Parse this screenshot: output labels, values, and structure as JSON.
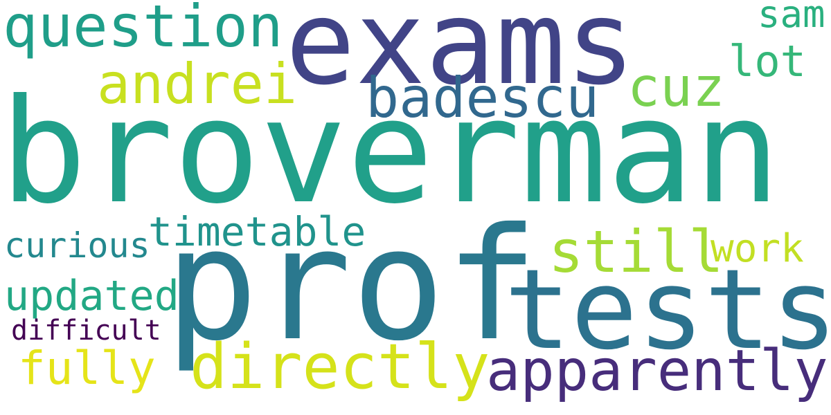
{
  "words": [
    {
      "text": "broverman",
      "color": "#21a08a"
    },
    {
      "text": "exams",
      "color": "#414487"
    },
    {
      "text": "prof",
      "color": "#2a788e"
    },
    {
      "text": "tests",
      "color": "#2c728e"
    },
    {
      "text": "question",
      "color": "#1f9e89"
    },
    {
      "text": "badescu",
      "color": "#31688e"
    },
    {
      "text": "andrei",
      "color": "#c8e020"
    },
    {
      "text": "cuz",
      "color": "#7ad151"
    },
    {
      "text": "sam",
      "color": "#2ab07f"
    },
    {
      "text": "lot",
      "color": "#35b779"
    },
    {
      "text": "timetable",
      "color": "#20938c"
    },
    {
      "text": "curious",
      "color": "#23888e"
    },
    {
      "text": "still",
      "color": "#a5db36"
    },
    {
      "text": "work",
      "color": "#c2df23"
    },
    {
      "text": "updated",
      "color": "#22a884"
    },
    {
      "text": "difficult",
      "color": "#440154"
    },
    {
      "text": "fully",
      "color": "#e5e419"
    },
    {
      "text": "directly",
      "color": "#d5e21a"
    },
    {
      "text": "apparently",
      "color": "#472d7b"
    }
  ]
}
